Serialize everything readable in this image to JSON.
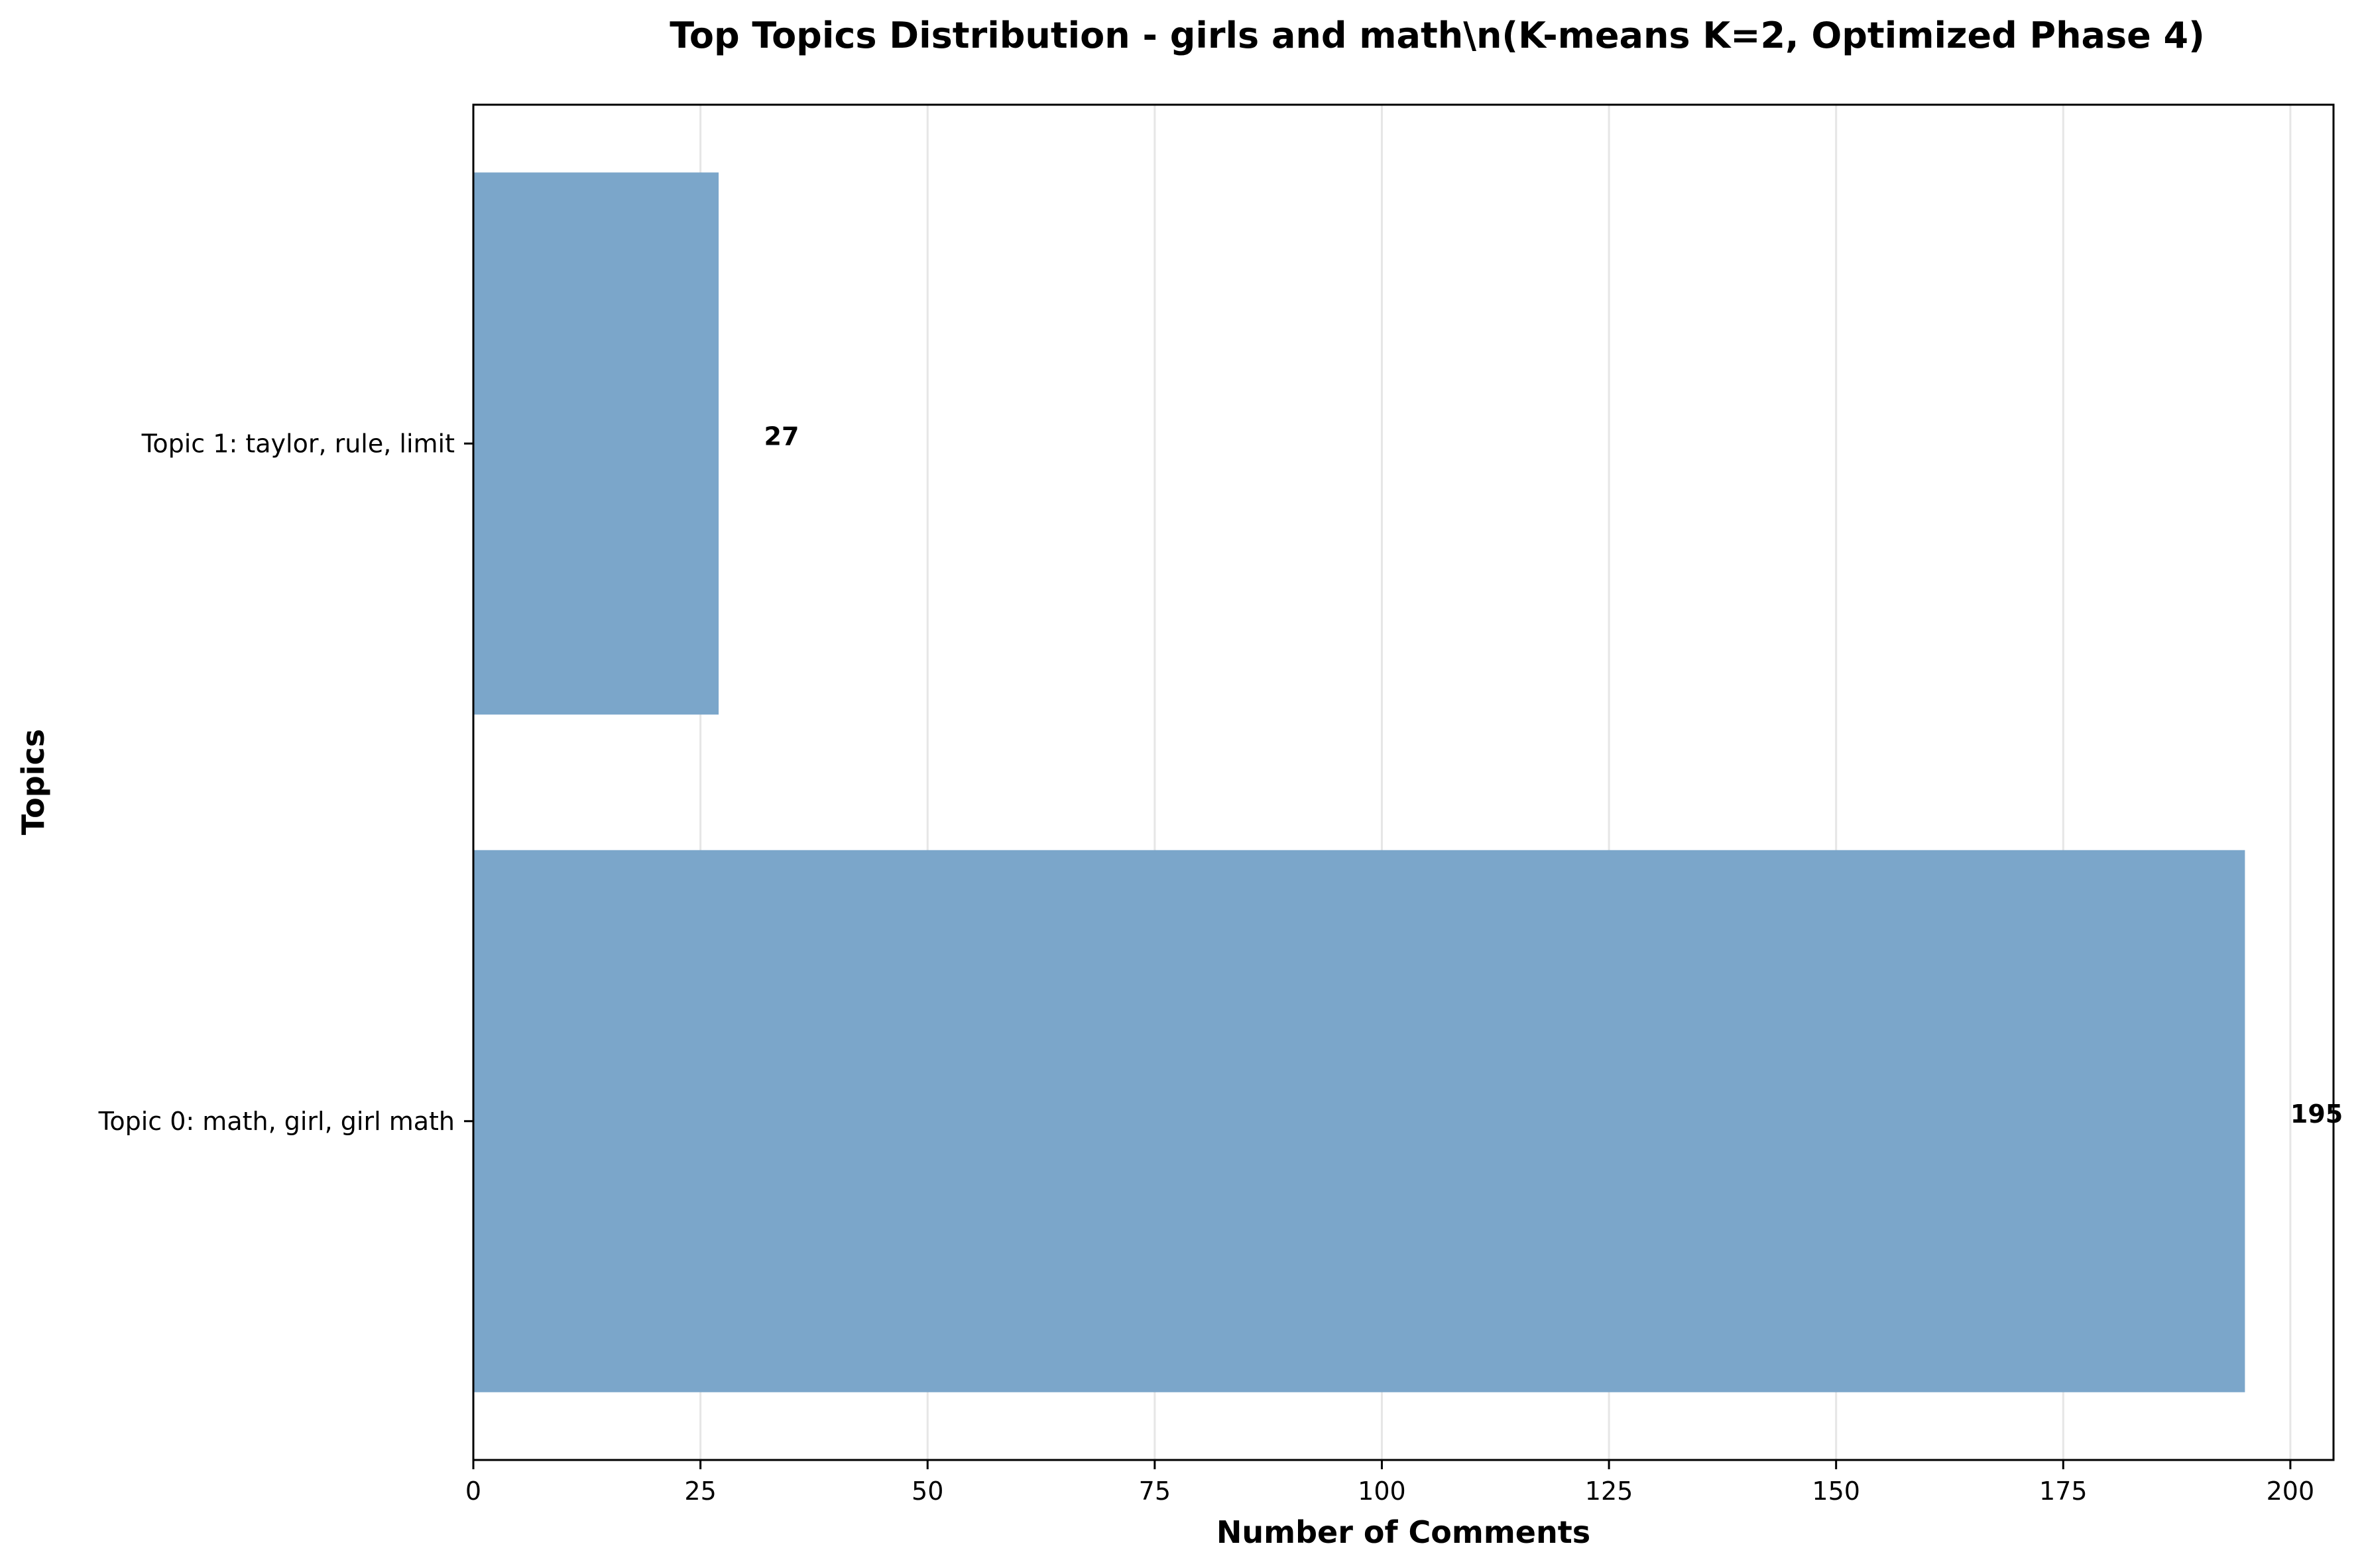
{
  "chart_data": {
    "type": "bar",
    "orientation": "horizontal",
    "title": "Top Topics Distribution - girls and math\\n(K-means K=2, Optimized Phase 4)",
    "xlabel": "Number of Comments",
    "ylabel": "Topics",
    "categories": [
      "Topic 1: taylor, rule, limit",
      "Topic 0: math, girl, girl math"
    ],
    "values": [
      27,
      195
    ],
    "data_labels": [
      "27",
      "195"
    ],
    "xlim": [
      0,
      204.75
    ],
    "xticks": [
      0,
      25,
      50,
      75,
      100,
      125,
      150,
      175,
      200
    ],
    "xtick_labels": [
      "0",
      "25",
      "50",
      "75",
      "100",
      "125",
      "150",
      "175",
      "200"
    ],
    "grid": "vertical",
    "bar_color": "#7ba6ca",
    "grid_color": "#e6e6e6"
  }
}
